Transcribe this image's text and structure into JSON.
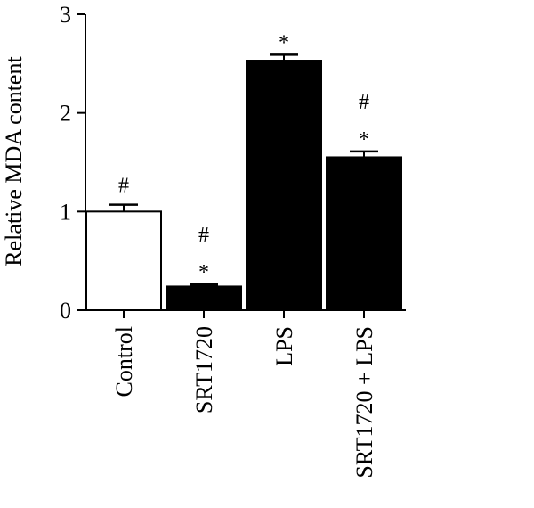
{
  "chart_data": {
    "type": "bar",
    "ylabel": "Relative MDA content",
    "ylim": [
      0,
      3
    ],
    "yticks": [
      0,
      1,
      2,
      3
    ],
    "categories": [
      "Control",
      "SRT1720",
      "LPS",
      "SRT1720 + LPS"
    ],
    "values": [
      1.0,
      0.24,
      2.53,
      1.55
    ],
    "errors": [
      0.07,
      0.02,
      0.06,
      0.06
    ],
    "bar_fills": [
      "#ffffff",
      "#000000",
      "#000000",
      "#000000"
    ],
    "significance": [
      [
        "#"
      ],
      [
        "*",
        "#"
      ],
      [
        "*"
      ],
      [
        "*",
        "#"
      ]
    ]
  }
}
